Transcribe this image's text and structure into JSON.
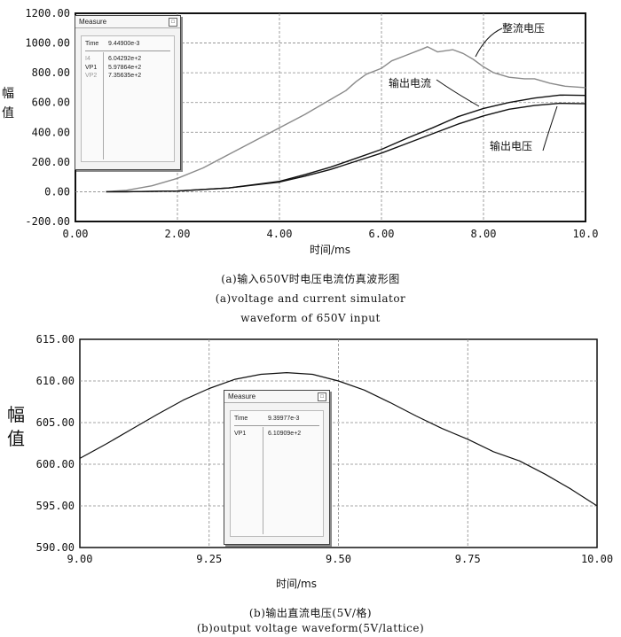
{
  "chart_data": [
    {
      "type": "line",
      "title": "",
      "xlabel": "时间/ms",
      "ylabel": "幅值",
      "xlim": [
        0,
        10
      ],
      "ylim": [
        -200,
        1200
      ],
      "x_ticks": [
        "0.00",
        "2.00",
        "4.00",
        "6.00",
        "8.00",
        "10.0"
      ],
      "y_ticks": [
        "1200.00",
        "1000.00",
        "800.00",
        "600.00",
        "400.00",
        "200.00",
        "0.00",
        "-200.00"
      ],
      "grid": true,
      "series": [
        {
          "name": "整流电压",
          "color": "#8a8a8a",
          "x": [
            0.6,
            1.0,
            1.5,
            2.0,
            2.5,
            3.0,
            3.5,
            4.0,
            4.5,
            5.0,
            5.3,
            5.5,
            5.7,
            6.0,
            6.2,
            6.5,
            6.8,
            6.9,
            7.1,
            7.4,
            7.6,
            7.8,
            8.0,
            8.2,
            8.5,
            8.8,
            9.0,
            9.3,
            9.6,
            10.0
          ],
          "y": [
            0,
            10,
            40,
            90,
            160,
            250,
            340,
            430,
            520,
            620,
            680,
            740,
            790,
            830,
            880,
            920,
            960,
            975,
            940,
            955,
            930,
            890,
            840,
            800,
            770,
            760,
            760,
            730,
            710,
            700
          ]
        },
        {
          "name": "输出电流",
          "color": "#111111",
          "x": [
            0.6,
            1.0,
            2.0,
            3.0,
            4.0,
            4.5,
            5.0,
            5.5,
            6.0,
            6.5,
            7.0,
            7.5,
            8.0,
            8.5,
            9.0,
            9.5,
            10.0
          ],
          "y": [
            0,
            0,
            5,
            25,
            70,
            115,
            165,
            225,
            285,
            360,
            430,
            505,
            560,
            600,
            630,
            650,
            648
          ]
        },
        {
          "name": "输出电压",
          "color": "#111111",
          "x": [
            0.6,
            1.0,
            2.0,
            3.0,
            4.0,
            4.5,
            5.0,
            5.5,
            6.0,
            6.5,
            7.0,
            7.5,
            8.0,
            8.5,
            9.0,
            9.5,
            10.0
          ],
          "y": [
            0,
            0,
            5,
            25,
            65,
            105,
            150,
            205,
            260,
            325,
            390,
            455,
            510,
            555,
            580,
            595,
            592
          ]
        }
      ],
      "annotations": [
        "整流电压",
        "输出电流",
        "输出电压"
      ]
    },
    {
      "type": "line",
      "title": "",
      "xlabel": "时间/ms",
      "ylabel": "幅值",
      "xlim": [
        9.0,
        10.0
      ],
      "ylim": [
        590,
        615
      ],
      "x_ticks": [
        "9.00",
        "9.25",
        "9.50",
        "9.75",
        "10.00"
      ],
      "y_ticks": [
        "615.00",
        "610.00",
        "605.00",
        "600.00",
        "595.00",
        "590.00"
      ],
      "grid": true,
      "series": [
        {
          "name": "",
          "color": "#111111",
          "x": [
            9.0,
            9.05,
            9.1,
            9.15,
            9.2,
            9.25,
            9.3,
            9.35,
            9.4,
            9.45,
            9.5,
            9.55,
            9.6,
            9.65,
            9.7,
            9.75,
            9.8,
            9.85,
            9.9,
            9.95,
            10.0
          ],
          "y": [
            600.7,
            602.4,
            604.2,
            606.0,
            607.7,
            609.1,
            610.2,
            610.8,
            611.0,
            610.8,
            610.0,
            608.9,
            607.4,
            605.8,
            604.3,
            603.0,
            601.5,
            600.4,
            598.8,
            597.0,
            595.0
          ]
        }
      ]
    }
  ],
  "measure_a": {
    "title": "Measure",
    "close": "□",
    "time_label": "Time",
    "time_value": "9.44900e-3",
    "rows": [
      {
        "k": "I4",
        "v": "6.04292e+2"
      },
      {
        "k": "VP1",
        "v": "5.97864e+2"
      },
      {
        "k": "VP2",
        "v": "7.35635e+2"
      }
    ]
  },
  "measure_b": {
    "title": "Measure",
    "close": "□",
    "time_label": "Time",
    "time_value": "9.39977e-3",
    "rows": [
      {
        "k": "VP1",
        "v": "6.10909e+2"
      }
    ]
  },
  "captions": {
    "a_cn": "(a)输入650V时电压电流仿真波形图",
    "a_en1": "(a)voltage and current simulator",
    "a_en2": "waveform of 650V input",
    "b_cn": "(b)输出直流电压(5V/格)",
    "b_en": "(b)output voltage waveform(5V/lattice)"
  },
  "y_title_a": [
    "幅",
    "值"
  ],
  "y_title_b": [
    "幅",
    "值"
  ]
}
